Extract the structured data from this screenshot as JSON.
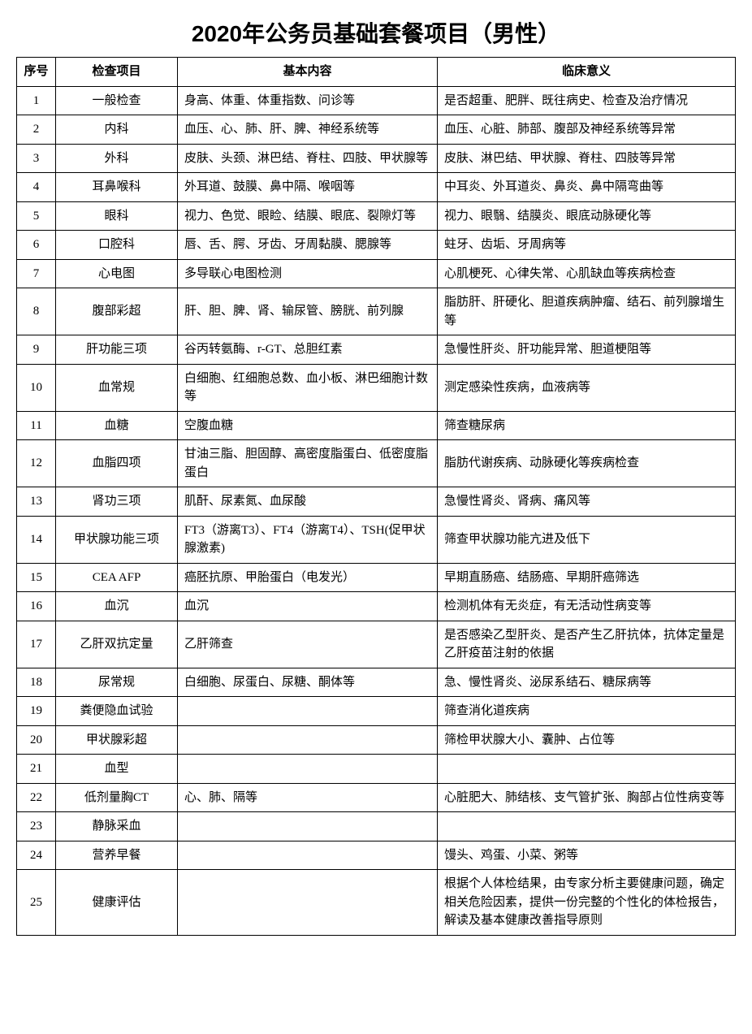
{
  "title": "2020年公务员基础套餐项目（男性）",
  "headers": {
    "seq": "序号",
    "item": "检查项目",
    "content": "基本内容",
    "meaning": "临床意义"
  },
  "rows": [
    {
      "seq": "1",
      "item": "一般检查",
      "content": "身高、体重、体重指数、问诊等",
      "meaning": "是否超重、肥胖、既往病史、检查及治疗情况"
    },
    {
      "seq": "2",
      "item": "内科",
      "content": "血压、心、肺、肝、脾、神经系统等",
      "meaning": "血压、心脏、肺部、腹部及神经系统等异常"
    },
    {
      "seq": "3",
      "item": "外科",
      "content": "皮肤、头颈、淋巴结、脊柱、四肢、甲状腺等",
      "meaning": "皮肤、淋巴结、甲状腺、脊柱、四肢等异常"
    },
    {
      "seq": "4",
      "item": "耳鼻喉科",
      "content": "外耳道、鼓膜、鼻中隔、喉咽等",
      "meaning": "中耳炎、外耳道炎、鼻炎、鼻中隔弯曲等"
    },
    {
      "seq": "5",
      "item": "眼科",
      "content": "视力、色觉、眼睑、结膜、眼底、裂隙灯等",
      "meaning": "视力、眼翳、结膜炎、眼底动脉硬化等"
    },
    {
      "seq": "6",
      "item": "口腔科",
      "content": "唇、舌、腭、牙齿、牙周黏膜、腮腺等",
      "meaning": "蛀牙、齿垢、牙周病等"
    },
    {
      "seq": "7",
      "item": "心电图",
      "content": "多导联心电图检测",
      "meaning": "心肌梗死、心律失常、心肌缺血等疾病检查"
    },
    {
      "seq": "8",
      "item": "腹部彩超",
      "content": "肝、胆、脾、肾、输尿管、膀胱、前列腺",
      "meaning": "脂肪肝、肝硬化、胆道疾病肿瘤、结石、前列腺增生等"
    },
    {
      "seq": "9",
      "item": "肝功能三项",
      "content": "谷丙转氨酶、r-GT、总胆红素",
      "meaning": "急慢性肝炎、肝功能异常、胆道梗阻等"
    },
    {
      "seq": "10",
      "item": "血常规",
      "content": "白细胞、红细胞总数、血小板、淋巴细胞计数等",
      "meaning": "测定感染性疾病，血液病等"
    },
    {
      "seq": "11",
      "item": "血糖",
      "content": "空腹血糖",
      "meaning": "筛查糖尿病"
    },
    {
      "seq": "12",
      "item": "血脂四项",
      "content": "甘油三脂、胆固醇、高密度脂蛋白、低密度脂蛋白",
      "meaning": "脂肪代谢疾病、动脉硬化等疾病检查"
    },
    {
      "seq": "13",
      "item": "肾功三项",
      "content": "肌酐、尿素氮、血尿酸",
      "meaning": "急慢性肾炎、肾病、痛风等"
    },
    {
      "seq": "14",
      "item": "甲状腺功能三项",
      "content": "FT3（游离T3）、FT4（游离T4）、TSH(促甲状腺激素)",
      "meaning": "筛查甲状腺功能亢进及低下"
    },
    {
      "seq": "15",
      "item": "CEA AFP",
      "content": "癌胚抗原、甲胎蛋白（电发光）",
      "meaning": "早期直肠癌、结肠癌、早期肝癌筛选"
    },
    {
      "seq": "16",
      "item": "血沉",
      "content": "血沉",
      "meaning": "检测机体有无炎症，有无活动性病变等"
    },
    {
      "seq": "17",
      "item": "乙肝双抗定量",
      "content": "乙肝筛查",
      "meaning": "是否感染乙型肝炎、是否产生乙肝抗体，抗体定量是乙肝疫苗注射的依据"
    },
    {
      "seq": "18",
      "item": "尿常规",
      "content": "白细胞、尿蛋白、尿糖、酮体等",
      "meaning": "急、慢性肾炎、泌尿系结石、糖尿病等"
    },
    {
      "seq": "19",
      "item": "粪便隐血试验",
      "content": "",
      "meaning": "筛查消化道疾病"
    },
    {
      "seq": "20",
      "item": "甲状腺彩超",
      "content": "",
      "meaning": "筛检甲状腺大小、囊肿、占位等"
    },
    {
      "seq": "21",
      "item": "血型",
      "content": "",
      "meaning": ""
    },
    {
      "seq": "22",
      "item": "低剂量胸CT",
      "content": "心、肺、隔等",
      "meaning": "心脏肥大、肺结核、支气管扩张、胸部占位性病变等"
    },
    {
      "seq": "23",
      "item": "静脉采血",
      "content": "",
      "meaning": ""
    },
    {
      "seq": "24",
      "item": "营养早餐",
      "content": "",
      "meaning": "馒头、鸡蛋、小菜、粥等"
    },
    {
      "seq": "25",
      "item": "健康评估",
      "content": "",
      "meaning": "根据个人体检结果，由专家分析主要健康问题，确定相关危险因素，提供一份完整的个性化的体检报告，解读及基本健康改善指导原则"
    }
  ],
  "style": {
    "background_color": "#ffffff",
    "border_color": "#000000",
    "title_fontsize": 28,
    "cell_fontsize": 15,
    "col_widths": {
      "seq": 48,
      "item": 150,
      "content": 320
    }
  }
}
